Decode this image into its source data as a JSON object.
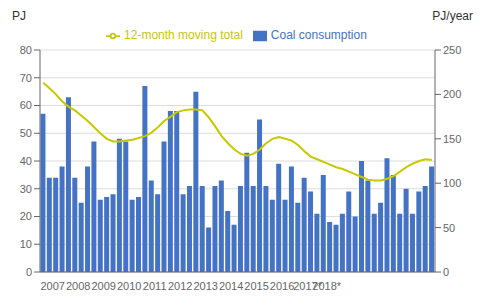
{
  "chart_data": {
    "type": "bar",
    "categories": [
      null,
      null,
      "2007",
      null,
      null,
      null,
      "2008",
      null,
      null,
      null,
      "2009",
      null,
      null,
      null,
      "2010",
      null,
      null,
      null,
      "2011",
      null,
      null,
      null,
      "2012",
      null,
      null,
      null,
      "2013",
      null,
      null,
      null,
      "2014",
      null,
      null,
      null,
      "2015",
      null,
      null,
      null,
      "2016",
      null,
      null,
      null,
      "2017*",
      null,
      null,
      "2018*",
      null,
      null,
      null,
      null,
      null,
      null,
      null,
      null,
      null,
      null,
      null,
      null,
      null,
      null,
      null,
      null
    ],
    "series": [
      {
        "name": "Coal consumption",
        "type": "bar",
        "color": "#4472C4",
        "values": [
          57,
          34,
          34,
          38,
          63,
          34,
          25,
          38,
          47,
          26,
          27,
          28,
          48,
          47,
          26,
          27,
          67,
          33,
          28,
          47,
          58,
          58,
          28,
          31,
          65,
          31,
          16,
          31,
          33,
          22,
          17,
          31,
          43,
          31,
          55,
          31,
          26,
          39,
          26,
          38,
          25,
          34,
          29,
          21,
          35,
          18,
          17,
          21,
          29,
          20,
          40,
          33,
          21,
          25,
          41,
          35,
          21,
          30,
          21,
          29,
          31,
          38
        ]
      },
      {
        "name": "12-month moving total",
        "type": "line",
        "color": "#C8C800",
        "axis": "y2",
        "values": [
          213,
          207,
          200,
          192,
          186,
          182,
          176,
          170,
          163,
          156,
          150,
          147,
          147,
          148,
          149,
          151,
          153,
          157,
          163,
          170,
          175,
          180,
          182,
          183,
          183,
          182,
          174,
          164,
          153,
          145,
          138,
          133,
          131,
          133,
          138,
          145,
          150,
          152,
          150,
          148,
          143,
          136,
          130,
          127,
          124,
          121,
          118,
          116,
          113,
          110,
          107,
          104,
          103,
          103,
          105,
          108,
          113,
          118,
          122,
          125,
          127,
          126
        ]
      }
    ],
    "ylabel": "PJ",
    "y2label": "PJ/year",
    "ylim": [
      0,
      80
    ],
    "yticks": [
      0,
      10,
      20,
      30,
      40,
      50,
      60,
      70,
      80
    ],
    "y2lim": [
      0,
      250
    ],
    "y2ticks": [
      0,
      50,
      100,
      150,
      200,
      250
    ],
    "grid": true,
    "legend": "top"
  }
}
